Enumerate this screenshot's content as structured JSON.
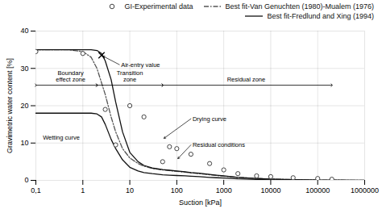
{
  "chart_data": {
    "type": "line",
    "title": "",
    "xlabel": "Suction [kPa]",
    "ylabel": "Gravimetric water content [%]",
    "log": "x",
    "xlim": [
      0.1,
      1000000
    ],
    "ylim": [
      0,
      40
    ],
    "xticks": [
      {
        "value": 0.1,
        "label": "0,1"
      },
      1,
      10,
      100,
      1000,
      10000,
      100000,
      1000000
    ],
    "yticks": [
      0,
      10,
      20,
      30,
      40
    ],
    "grid": true,
    "legend": "upper right",
    "series": [
      {
        "name": "GI-Experimental data",
        "type": "scatter",
        "marker": "circle",
        "color": "#444444",
        "x": [
          0.1,
          1.0,
          3.0,
          5.0,
          10.0,
          20.0,
          50.0,
          70.0,
          100.0,
          200.0,
          500.0,
          1000.0,
          2000.0,
          5000.0,
          10000.0,
          30000.0,
          100000.0,
          200000.0
        ],
        "values": [
          34.5,
          34.0,
          19.0,
          9.5,
          20.0,
          17.0,
          5.0,
          9.0,
          8.5,
          7.0,
          4.5,
          2.8,
          1.8,
          1.2,
          1.0,
          0.7,
          0.5,
          0.3
        ]
      },
      {
        "name": "Best fit-Van Genuchten (1980)-Mualem (1976)",
        "type": "line",
        "line_style": "dashdot",
        "color": "#555555",
        "x": [
          0.1,
          0.3,
          0.5,
          1.0,
          1.5,
          2.0,
          3.0,
          4.0,
          5.0,
          7.0,
          10.0,
          15.0,
          20.0,
          30.0,
          50.0,
          70.0,
          100.0,
          150.0,
          200.0,
          300.0,
          500.0,
          700.0,
          1000.0,
          2000.0,
          5000.0,
          10000.0,
          30000.0,
          100000.0,
          300000.0,
          1000000.0
        ],
        "values": [
          35.0,
          35.0,
          35.0,
          34.5,
          33.0,
          30.0,
          23.0,
          17.0,
          13.0,
          8.5,
          6.0,
          4.5,
          3.8,
          3.2,
          2.8,
          2.6,
          2.4,
          2.2,
          2.0,
          1.8,
          1.5,
          1.3,
          1.1,
          0.8,
          0.5,
          0.35,
          0.2,
          0.1,
          0.05,
          0.02
        ]
      },
      {
        "name": "Best fit-Fredlund and Xing (1994)",
        "type": "line",
        "line_style": "solid",
        "color": "#111111",
        "x": [
          0.1,
          0.3,
          0.5,
          1.0,
          1.5,
          2.0,
          2.5,
          3.0,
          4.0,
          5.0,
          7.0,
          10.0,
          15.0,
          20.0,
          30.0,
          50.0,
          70.0,
          100.0,
          150.0,
          200.0,
          300.0,
          500.0,
          700.0,
          1000.0,
          2000.0,
          5000.0,
          10000.0,
          30000.0,
          100000.0,
          300000.0,
          1000000.0
        ],
        "values": [
          35.0,
          35.0,
          35.0,
          35.0,
          35.0,
          34.8,
          34.0,
          32.0,
          27.0,
          21.0,
          13.0,
          7.5,
          5.0,
          4.0,
          3.3,
          2.9,
          2.7,
          2.5,
          2.3,
          2.1,
          1.9,
          1.6,
          1.4,
          1.2,
          0.8,
          0.5,
          0.35,
          0.2,
          0.1,
          0.05,
          0.02
        ]
      },
      {
        "type": "line",
        "line_style": "solid",
        "color": "#111111",
        "x": [
          0.1,
          0.3,
          0.5,
          1.0,
          1.5,
          2.0,
          2.5,
          3.0,
          4.0,
          5.0,
          7.0,
          10.0,
          15.0,
          20.0,
          30.0,
          50.0,
          70.0,
          100.0,
          150.0,
          200.0,
          300.0,
          500.0,
          700.0,
          1000.0,
          2000.0,
          5000.0,
          10000.0,
          30000.0,
          100000.0
        ],
        "values": [
          18.0,
          18.0,
          18.0,
          18.0,
          18.0,
          17.8,
          17.0,
          15.0,
          11.0,
          8.5,
          5.5,
          3.5,
          2.5,
          2.1,
          1.8,
          1.5,
          1.4,
          1.3,
          1.2,
          1.1,
          1.0,
          0.8,
          0.7,
          0.6,
          0.4,
          0.25,
          0.15,
          0.08,
          0.04
        ]
      }
    ],
    "annotations": [
      {
        "text": "Air-entry value",
        "x": 6.0,
        "y": 31.0,
        "arrow": [
          2.5,
          33.5
        ],
        "marker": "x"
      },
      {
        "text": "Boundary\neffect zone",
        "x": 0.55,
        "y": 26.5,
        "span_x": [
          0.1,
          2.0
        ],
        "span_y": 25.5
      },
      {
        "text": "Transition\nzone",
        "x": 10.0,
        "y": 26.5,
        "span_x": [
          2.0,
          50.0
        ],
        "span_y": 25.5
      },
      {
        "text": "Residual zone",
        "x": 3000.0,
        "y": 26.5,
        "span_x": [
          50.0,
          200000.0
        ],
        "span_y": 25.5
      },
      {
        "text": "Drying curve",
        "x": 200.0,
        "y": 16.5,
        "arrow": [
          50.0,
          11.0
        ]
      },
      {
        "text": "Wetting curve",
        "x": 0.13,
        "y": 11.5
      },
      {
        "text": "Residual conditions",
        "x": 200.0,
        "y": 9.5,
        "arrow": [
          100.0,
          5.5
        ]
      }
    ]
  }
}
